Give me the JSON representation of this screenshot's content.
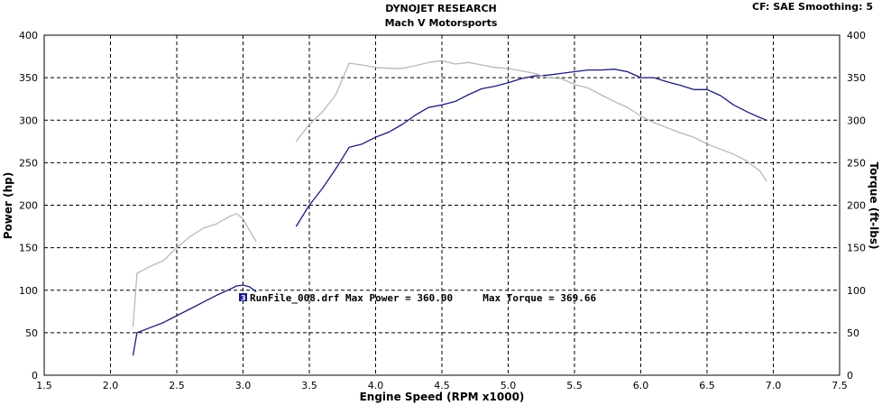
{
  "header": {
    "title": "DYNOJET RESEARCH",
    "subtitle": "Mach V Motorsports",
    "correction": "CF: SAE  Smoothing: 5"
  },
  "annotation": {
    "marker": "3",
    "text": "RunFile_008.drf Max Power = 360.00     Max Torque = 369.66"
  },
  "colors": {
    "power": "#1a1a7a",
    "torque": "#b8b8b8",
    "marker": "#1a1a8c"
  },
  "chart_data": {
    "type": "line",
    "title": "DYNOJET RESEARCH",
    "subtitle": "Mach V Motorsports",
    "xlabel": "Engine Speed (RPM x1000)",
    "ylabel": "Power (hp)",
    "y2label": "Torque (ft-lbs)",
    "xlim": [
      1.5,
      7.5
    ],
    "ylim": [
      0,
      400
    ],
    "y2lim": [
      0,
      400
    ],
    "xticks": [
      "1.5",
      "2.0",
      "2.5",
      "3.0",
      "3.5",
      "4.0",
      "4.5",
      "5.0",
      "5.5",
      "6.0",
      "6.5",
      "7.0",
      "7.5"
    ],
    "yticks": [
      "0",
      "50",
      "100",
      "150",
      "200",
      "250",
      "300",
      "350",
      "400"
    ],
    "y2ticks": [
      "0",
      "50",
      "100",
      "150",
      "200",
      "250",
      "300",
      "350",
      "400"
    ],
    "grid": true,
    "series": [
      {
        "name": "Power",
        "axis": "left",
        "segments": [
          [
            [
              2.17,
              23
            ],
            [
              2.2,
              50
            ],
            [
              2.3,
              56
            ],
            [
              2.4,
              62
            ],
            [
              2.5,
              70
            ],
            [
              2.6,
              78
            ],
            [
              2.7,
              86
            ],
            [
              2.8,
              94
            ],
            [
              2.9,
              101
            ],
            [
              2.95,
              105
            ],
            [
              3.0,
              106
            ],
            [
              3.05,
              104
            ],
            [
              3.1,
              98
            ]
          ],
          [
            [
              3.4,
              175
            ],
            [
              3.5,
              200
            ],
            [
              3.6,
              220
            ],
            [
              3.7,
              243
            ],
            [
              3.8,
              268
            ],
            [
              3.9,
              272
            ],
            [
              4.0,
              280
            ],
            [
              4.1,
              286
            ],
            [
              4.2,
              295
            ],
            [
              4.3,
              306
            ],
            [
              4.4,
              315
            ],
            [
              4.5,
              318
            ],
            [
              4.6,
              322
            ],
            [
              4.7,
              330
            ],
            [
              4.8,
              337
            ],
            [
              4.9,
              340
            ],
            [
              5.0,
              344
            ],
            [
              5.1,
              349
            ],
            [
              5.2,
              352
            ],
            [
              5.3,
              353
            ],
            [
              5.4,
              355
            ],
            [
              5.5,
              357
            ],
            [
              5.6,
              359
            ],
            [
              5.7,
              359
            ],
            [
              5.8,
              360
            ],
            [
              5.9,
              357
            ],
            [
              6.0,
              350
            ],
            [
              6.1,
              350
            ],
            [
              6.2,
              345
            ],
            [
              6.3,
              341
            ],
            [
              6.4,
              336
            ],
            [
              6.5,
              336
            ],
            [
              6.6,
              329
            ],
            [
              6.7,
              318
            ],
            [
              6.8,
              310
            ],
            [
              6.9,
              303
            ],
            [
              6.95,
              300
            ]
          ]
        ]
      },
      {
        "name": "Torque",
        "axis": "right",
        "segments": [
          [
            [
              2.17,
              57
            ],
            [
              2.2,
              120
            ],
            [
              2.3,
              128
            ],
            [
              2.4,
              135
            ],
            [
              2.5,
              150
            ],
            [
              2.6,
              163
            ],
            [
              2.7,
              173
            ],
            [
              2.8,
              178
            ],
            [
              2.9,
              187
            ],
            [
              2.95,
              190
            ],
            [
              3.0,
              184
            ],
            [
              3.05,
              170
            ],
            [
              3.1,
              157
            ]
          ],
          [
            [
              3.4,
              275
            ],
            [
              3.5,
              295
            ],
            [
              3.6,
              310
            ],
            [
              3.7,
              330
            ],
            [
              3.8,
              367
            ],
            [
              3.9,
              365
            ],
            [
              4.0,
              362
            ],
            [
              4.1,
              361
            ],
            [
              4.2,
              361
            ],
            [
              4.3,
              364
            ],
            [
              4.4,
              368
            ],
            [
              4.5,
              370
            ],
            [
              4.6,
              366
            ],
            [
              4.7,
              368
            ],
            [
              4.8,
              365
            ],
            [
              4.9,
              362
            ],
            [
              5.0,
              361
            ],
            [
              5.1,
              358
            ],
            [
              5.2,
              355
            ],
            [
              5.3,
              350
            ],
            [
              5.4,
              349
            ],
            [
              5.5,
              342
            ],
            [
              5.6,
              338
            ],
            [
              5.7,
              330
            ],
            [
              5.8,
              322
            ],
            [
              5.9,
              315
            ],
            [
              6.0,
              305
            ],
            [
              6.1,
              297
            ],
            [
              6.2,
              291
            ],
            [
              6.3,
              285
            ],
            [
              6.4,
              280
            ],
            [
              6.5,
              272
            ],
            [
              6.6,
              266
            ],
            [
              6.7,
              260
            ],
            [
              6.8,
              252
            ],
            [
              6.9,
              240
            ],
            [
              6.95,
              228
            ]
          ]
        ]
      }
    ]
  }
}
